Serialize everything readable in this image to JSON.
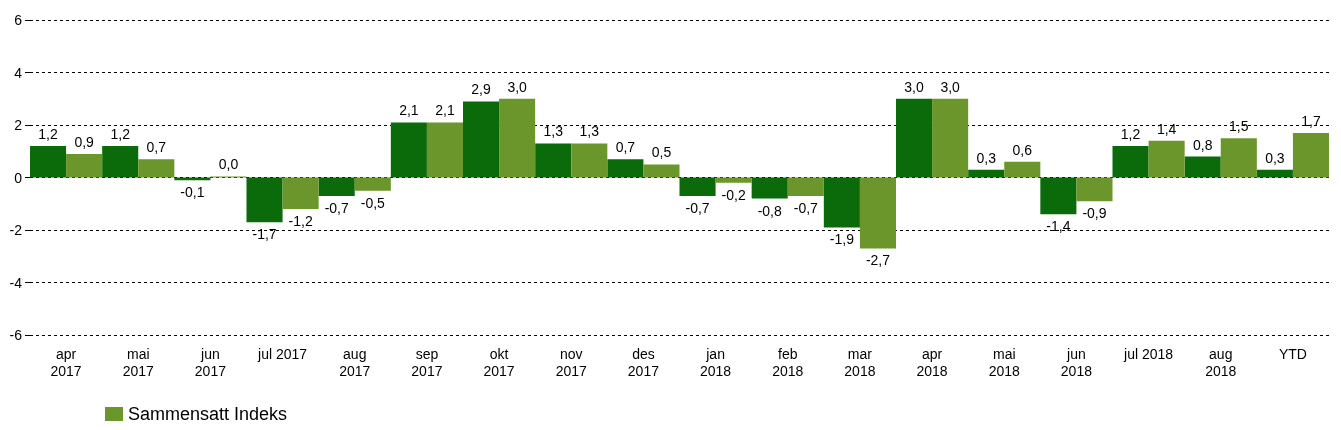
{
  "chart_data": {
    "type": "bar",
    "categories": [
      "apr\n2017",
      "mai\n2017",
      "jun\n2017",
      "jul 2017",
      "aug\n2017",
      "sep\n2017",
      "okt\n2017",
      "nov\n2017",
      "des\n2017",
      "jan\n2018",
      "feb\n2018",
      "mar\n2018",
      "apr\n2018",
      "mai\n2018",
      "jun\n2018",
      "jul 2018",
      "aug\n2018",
      "YTD"
    ],
    "series": [
      {
        "color": "#0b6b0b",
        "values": [
          1.2,
          1.2,
          -0.1,
          -1.7,
          -0.7,
          2.1,
          2.9,
          1.3,
          0.7,
          -0.7,
          -0.8,
          -1.9,
          3.0,
          0.3,
          -1.4,
          1.2,
          0.8,
          0.3
        ],
        "value_labels": [
          "1,2",
          "1,2",
          "-0,1",
          "-1,7",
          "-0,7",
          "2,1",
          "2,9",
          "1,3",
          "0,7",
          "-0,7",
          "-0,8",
          "-1,9",
          "3,0",
          "0,3",
          "-1,4",
          "1,2",
          "0,8",
          "0,3"
        ]
      },
      {
        "name": "Sammensatt Indeks",
        "color": "#6b962b",
        "values": [
          0.9,
          0.7,
          0.04,
          -1.2,
          -0.5,
          2.1,
          3.0,
          1.3,
          0.5,
          -0.2,
          -0.7,
          -2.7,
          3.0,
          0.6,
          -0.9,
          1.4,
          1.5,
          1.7
        ],
        "value_labels": [
          "0,9",
          "0,7",
          "0,0",
          "-1,2",
          "-0,5",
          "2,1",
          "3,0",
          "1,3",
          "0,5",
          "-0,2",
          "-0,7",
          "-2,7",
          "3,0",
          "0,6",
          "-0,9",
          "1,4",
          "1,5",
          "1,7"
        ]
      }
    ],
    "ylim": [
      -6,
      6
    ],
    "yticks": [
      -6,
      -4,
      -2,
      0,
      2,
      4,
      6
    ],
    "grid": "y",
    "legend": "bottom left"
  }
}
